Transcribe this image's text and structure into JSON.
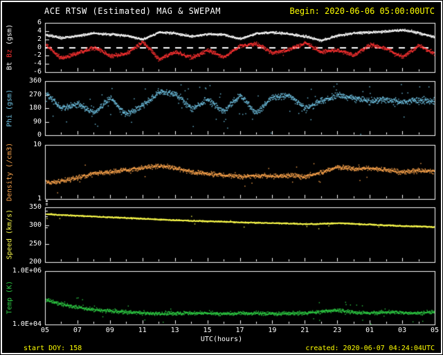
{
  "header": {
    "title": "ACE RTSW (Estimated) MAG & SWEPAM",
    "begin_label": "Begin: 2020-06-06 05:00:00UTC"
  },
  "footer": {
    "xaxis_label": "UTC(hours)",
    "start_doy": "start DOY: 158",
    "created": "created: 2020-06-07 04:24:04UTC"
  },
  "colors": {
    "background": "#000000",
    "frame": "#ffffff",
    "text": "#ffffff",
    "accent_yellow": "#ffff00",
    "bt": "#ffffff",
    "bz": "#ff3232",
    "phi": "#72c7e8",
    "density": "#ffa64d",
    "speed": "#ffff4d",
    "temp": "#2ecc44"
  },
  "xaxis": {
    "label": "UTC(hours)",
    "tick_labels": [
      "05",
      "07",
      "09",
      "11",
      "13",
      "15",
      "17",
      "19",
      "21",
      "23",
      "01",
      "03",
      "05"
    ],
    "tick_hours": [
      0,
      2,
      4,
      6,
      8,
      10,
      12,
      14,
      16,
      18,
      20,
      22,
      24
    ],
    "anchor_hours": [
      0,
      1,
      2,
      3,
      4,
      5,
      6,
      7,
      8,
      9,
      10,
      11,
      12,
      13,
      14,
      15,
      16,
      17,
      18,
      19,
      20,
      21,
      22,
      23,
      24
    ],
    "range_hours": [
      0,
      24
    ]
  },
  "chart_data": [
    {
      "type": "scatter",
      "name": "mag-bt-bz",
      "scale": "linear",
      "ylim": [
        -6,
        6
      ],
      "yticks": [
        6,
        4,
        2,
        0,
        -2,
        -4,
        -6
      ],
      "ytick_labels": [
        "6",
        "4",
        "2",
        "0",
        "-2",
        "-4",
        "-6"
      ],
      "dashed_zero": true,
      "ylabel_parts": [
        {
          "text": "Bt",
          "color_key": "bt"
        },
        {
          "text": "Bz",
          "color_key": "bz"
        },
        {
          "text": "(gsm)",
          "color_key": "text"
        }
      ],
      "series": [
        {
          "name": "Bz",
          "color_key": "bz",
          "noise": 0.7,
          "outlier_rate": 0.01,
          "outlier_mag": 1.2,
          "values": [
            0.8,
            -2.6,
            -1.2,
            0.2,
            -2.0,
            -1.4,
            1.5,
            -2.8,
            -1.0,
            -2.4,
            -0.6,
            -2.2,
            0.5,
            1.0,
            -1.2,
            -0.4,
            1.2,
            -1.0,
            -0.5,
            -1.8,
            0.8,
            -0.2,
            -2.2,
            0.6,
            -1.5
          ]
        },
        {
          "name": "Bt",
          "color_key": "bt",
          "noise": 0.4,
          "outlier_rate": 0.005,
          "outlier_mag": 0.8,
          "values": [
            3.2,
            2.4,
            2.9,
            3.6,
            3.3,
            3.0,
            2.0,
            3.8,
            3.6,
            2.8,
            3.4,
            3.2,
            2.2,
            3.5,
            3.8,
            3.4,
            2.8,
            1.8,
            3.0,
            3.6,
            3.8,
            4.0,
            4.4,
            3.6,
            2.6
          ]
        }
      ]
    },
    {
      "type": "scatter",
      "name": "phi",
      "scale": "linear",
      "ylim": [
        0,
        360
      ],
      "yticks": [
        360,
        270,
        180,
        90,
        0
      ],
      "ytick_labels": [
        "360",
        "270",
        "180",
        "90",
        "0"
      ],
      "wrap360": true,
      "ylabel_parts": [
        {
          "text": "Phi (gsm)",
          "color_key": "phi"
        }
      ],
      "series": [
        {
          "name": "Phi",
          "color_key": "phi",
          "noise": 30,
          "outlier_rate": 0.06,
          "outlier_mag": 130,
          "values": [
            280,
            180,
            210,
            150,
            250,
            140,
            200,
            290,
            280,
            180,
            240,
            160,
            270,
            150,
            260,
            270,
            180,
            230,
            270,
            250,
            230,
            240,
            220,
            235,
            230
          ]
        }
      ]
    },
    {
      "type": "scatter",
      "name": "density",
      "scale": "log",
      "ylim": [
        1,
        10
      ],
      "yticks": [
        10,
        1
      ],
      "ytick_labels": [
        "10",
        "1"
      ],
      "ylabel_parts": [
        {
          "text": "Density (/cm3)",
          "color_key": "density"
        }
      ],
      "series": [
        {
          "name": "Density",
          "color_key": "density",
          "noise": 0.06,
          "outlier_rate": 0.02,
          "outlier_mag": 0.22,
          "values": [
            2.0,
            2.2,
            2.5,
            3.0,
            3.2,
            3.5,
            3.8,
            4.2,
            3.8,
            3.2,
            3.0,
            2.8,
            2.6,
            2.8,
            2.7,
            2.8,
            2.6,
            3.2,
            4.0,
            3.6,
            3.8,
            3.5,
            3.2,
            3.4,
            3.3
          ]
        }
      ]
    },
    {
      "type": "scatter",
      "name": "speed",
      "scale": "linear",
      "ylim": [
        200,
        350
      ],
      "yticks": [
        350,
        300,
        250,
        200
      ],
      "ytick_labels": [
        "350",
        "300",
        "250",
        "200"
      ],
      "ylabel_parts": [
        {
          "text": "Speed (km/s)",
          "color_key": "speed"
        }
      ],
      "series": [
        {
          "name": "Speed",
          "color_key": "speed",
          "noise": 2.5,
          "outlier_rate": 0.006,
          "outlier_mag": 22,
          "values": [
            333,
            330,
            328,
            326,
            324,
            322,
            320,
            318,
            316,
            314,
            313,
            312,
            310,
            309,
            308,
            307,
            305,
            306,
            308,
            306,
            304,
            302,
            300,
            299,
            297
          ]
        }
      ]
    },
    {
      "type": "scatter",
      "name": "temperature",
      "scale": "log",
      "ylim": [
        10000,
        1000000
      ],
      "yticks": [
        1000000,
        10000
      ],
      "ytick_labels": [
        "1.0E+06",
        "1.0E+04"
      ],
      "ylabel_parts": [
        {
          "text": "Temp (K)",
          "color_key": "temp"
        }
      ],
      "series": [
        {
          "name": "Temp",
          "color_key": "temp",
          "noise": 0.1,
          "outlier_rate": 0.025,
          "outlier_mag": 0.45,
          "values": [
            90000,
            60000,
            45000,
            38000,
            33000,
            30000,
            28000,
            26000,
            28000,
            27000,
            28000,
            26000,
            27000,
            28000,
            26000,
            27000,
            28000,
            32000,
            35000,
            30000,
            28000,
            30000,
            29000,
            28000,
            30000
          ]
        }
      ]
    }
  ]
}
